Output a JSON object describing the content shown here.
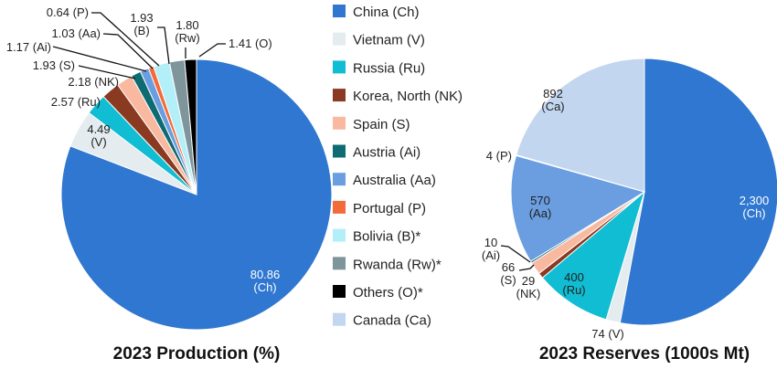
{
  "legend": [
    {
      "label": "China (Ch)",
      "color": "#2f77d0"
    },
    {
      "label": "Vietnam (V)",
      "color": "#e4ecef"
    },
    {
      "label": "Russia (Ru)",
      "color": "#10bdd3"
    },
    {
      "label": "Korea, North (NK)",
      "color": "#8a3a20"
    },
    {
      "label": "Spain (S)",
      "color": "#f8b9a0"
    },
    {
      "label": "Austria (Ai)",
      "color": "#0e6b72"
    },
    {
      "label": "Australia (Aa)",
      "color": "#6a9ee0"
    },
    {
      "label": "Portugal (P)",
      "color": "#f26b3a"
    },
    {
      "label": "Bolivia (B)*",
      "color": "#b3eff9"
    },
    {
      "label": "Rwanda (Rw)*",
      "color": "#7f959c"
    },
    {
      "label": "Others (O)*",
      "color": "#000000"
    },
    {
      "label": "Canada (Ca)",
      "color": "#c2d6f0"
    }
  ],
  "chart_data": [
    {
      "type": "pie",
      "title": "2023 Production (%)",
      "categories": [
        "China",
        "Vietnam",
        "Russia",
        "Korea, North",
        "Spain",
        "Austria",
        "Australia",
        "Portugal",
        "Bolivia",
        "Rwanda",
        "Others"
      ],
      "codes": [
        "(Ch)",
        "(V)",
        "(Ru)",
        "(NK)",
        "(S)",
        "(Ai)",
        "(Aa)",
        "(P)",
        "(B)",
        "(Rw)",
        "(O)"
      ],
      "values": [
        80.86,
        4.49,
        2.57,
        2.18,
        1.93,
        1.17,
        1.03,
        0.64,
        1.93,
        1.8,
        1.41
      ],
      "value_labels": [
        "80.86",
        "4.49",
        "2.57",
        "2.18",
        "1.93",
        "1.17",
        "1.03",
        "0.64",
        "1.93",
        "1.80",
        "1.41"
      ],
      "colors": [
        "#2f77d0",
        "#e4ecef",
        "#10bdd3",
        "#8a3a20",
        "#f8b9a0",
        "#0e6b72",
        "#6a9ee0",
        "#f26b3a",
        "#b3eff9",
        "#7f959c",
        "#000000"
      ],
      "start": "12 o'clock, clockwise"
    },
    {
      "type": "pie",
      "title": "2023 Reserves (1000s Mt)",
      "categories": [
        "China",
        "Vietnam",
        "Russia",
        "Korea, North",
        "Spain",
        "Austria",
        "Australia",
        "Portugal",
        "Canada"
      ],
      "codes": [
        "(Ch)",
        "(V)",
        "(Ru)",
        "(NK)",
        "(S)",
        "(Ai)",
        "(Aa)",
        "(P)",
        "(Ca)"
      ],
      "values": [
        2300,
        74,
        400,
        29,
        66,
        10,
        570,
        4,
        892
      ],
      "value_labels": [
        "2,300",
        "74",
        "400",
        "29",
        "66",
        "10",
        "570",
        "4",
        "892"
      ],
      "colors": [
        "#2f77d0",
        "#e4ecef",
        "#10bdd3",
        "#8a3a20",
        "#f8b9a0",
        "#0e6b72",
        "#6a9ee0",
        "#f26b3a",
        "#c2d6f0"
      ],
      "start": "12 o'clock, clockwise"
    }
  ]
}
